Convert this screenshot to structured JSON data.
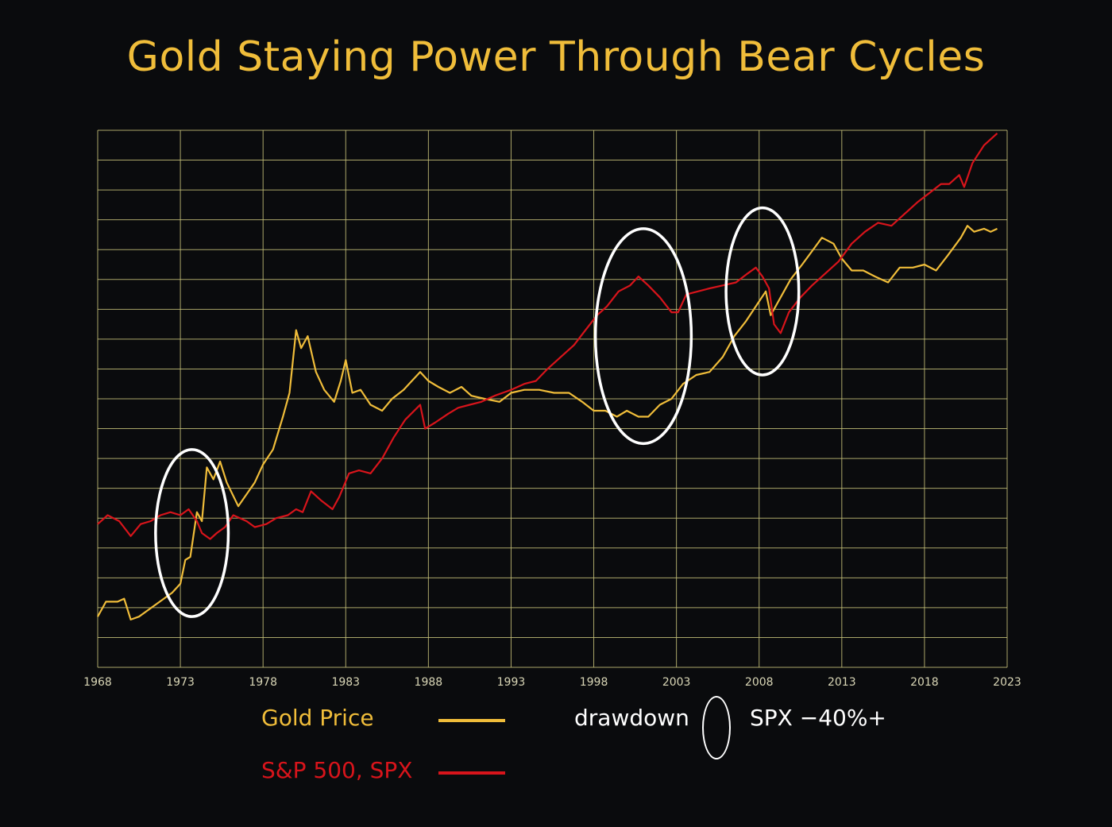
{
  "title": "Gold Staying Power Through Bear Cycles",
  "colors": {
    "background": "#0a0b0d",
    "grid": "#c7c27a",
    "gold": "#f0bd3a",
    "spx": "#d8141b",
    "ellipse": "#ffffff",
    "tick_label": "#d9d6b6"
  },
  "legend": {
    "gold_label": "Gold Price",
    "spx_label": "S&P 500, SPX",
    "drawdown_label": "drawdown",
    "drawdown_desc": "SPX −40%+"
  },
  "chart_data": {
    "type": "line",
    "title": "Gold Staying Power Through Bear Cycles",
    "xlabel": "",
    "ylabel": "",
    "xlim": [
      1968,
      2023
    ],
    "x_ticks": [
      "1968",
      "1973",
      "1978",
      "1983",
      "1988",
      "1993",
      "1998",
      "2003",
      "2008",
      "2013",
      "2018",
      "2023"
    ],
    "y_scale": "log (unlabeled)",
    "ylim": [
      0,
      18
    ],
    "grid": true,
    "legend_position": "bottom",
    "series": [
      {
        "name": "Gold Price",
        "color": "#f0bd3a",
        "points": [
          [
            1968.0,
            1.7
          ],
          [
            1968.5,
            2.2
          ],
          [
            1969.2,
            2.2
          ],
          [
            1969.6,
            2.3
          ],
          [
            1970.0,
            1.6
          ],
          [
            1970.5,
            1.7
          ],
          [
            1971.0,
            1.9
          ],
          [
            1971.5,
            2.1
          ],
          [
            1972.0,
            2.3
          ],
          [
            1972.5,
            2.5
          ],
          [
            1973.0,
            2.8
          ],
          [
            1973.3,
            3.6
          ],
          [
            1973.6,
            3.7
          ],
          [
            1974.0,
            5.2
          ],
          [
            1974.3,
            4.9
          ],
          [
            1974.6,
            6.7
          ],
          [
            1975.0,
            6.3
          ],
          [
            1975.4,
            6.9
          ],
          [
            1975.8,
            6.2
          ],
          [
            1976.5,
            5.4
          ],
          [
            1977.0,
            5.8
          ],
          [
            1977.5,
            6.2
          ],
          [
            1978.0,
            6.8
          ],
          [
            1978.6,
            7.3
          ],
          [
            1979.2,
            8.4
          ],
          [
            1979.6,
            9.2
          ],
          [
            1980.0,
            11.3
          ],
          [
            1980.3,
            10.7
          ],
          [
            1980.7,
            11.1
          ],
          [
            1981.2,
            9.9
          ],
          [
            1981.7,
            9.3
          ],
          [
            1982.3,
            8.9
          ],
          [
            1982.7,
            9.6
          ],
          [
            1983.0,
            10.3
          ],
          [
            1983.4,
            9.2
          ],
          [
            1983.9,
            9.3
          ],
          [
            1984.5,
            8.8
          ],
          [
            1985.2,
            8.6
          ],
          [
            1985.8,
            9.0
          ],
          [
            1986.5,
            9.3
          ],
          [
            1987.0,
            9.6
          ],
          [
            1987.5,
            9.9
          ],
          [
            1988.0,
            9.6
          ],
          [
            1988.6,
            9.4
          ],
          [
            1989.3,
            9.2
          ],
          [
            1990.0,
            9.4
          ],
          [
            1990.6,
            9.1
          ],
          [
            1991.4,
            9.0
          ],
          [
            1992.3,
            8.9
          ],
          [
            1993.0,
            9.2
          ],
          [
            1993.8,
            9.3
          ],
          [
            1994.7,
            9.3
          ],
          [
            1995.6,
            9.2
          ],
          [
            1996.5,
            9.2
          ],
          [
            1997.3,
            8.9
          ],
          [
            1998.0,
            8.6
          ],
          [
            1998.7,
            8.6
          ],
          [
            1999.4,
            8.4
          ],
          [
            2000.0,
            8.6
          ],
          [
            2000.7,
            8.4
          ],
          [
            2001.3,
            8.4
          ],
          [
            2002.0,
            8.8
          ],
          [
            2002.7,
            9.0
          ],
          [
            2003.4,
            9.5
          ],
          [
            2004.2,
            9.8
          ],
          [
            2005.0,
            9.9
          ],
          [
            2005.8,
            10.4
          ],
          [
            2006.5,
            11.1
          ],
          [
            2007.2,
            11.6
          ],
          [
            2007.8,
            12.1
          ],
          [
            2008.4,
            12.6
          ],
          [
            2008.7,
            11.8
          ],
          [
            2009.3,
            12.4
          ],
          [
            2009.9,
            13.0
          ],
          [
            2010.6,
            13.5
          ],
          [
            2011.4,
            14.1
          ],
          [
            2011.8,
            14.4
          ],
          [
            2012.5,
            14.2
          ],
          [
            2013.0,
            13.7
          ],
          [
            2013.6,
            13.3
          ],
          [
            2014.3,
            13.3
          ],
          [
            2015.0,
            13.1
          ],
          [
            2015.8,
            12.9
          ],
          [
            2016.5,
            13.4
          ],
          [
            2017.3,
            13.4
          ],
          [
            2018.0,
            13.5
          ],
          [
            2018.7,
            13.3
          ],
          [
            2019.4,
            13.8
          ],
          [
            2020.2,
            14.4
          ],
          [
            2020.6,
            14.8
          ],
          [
            2021.0,
            14.6
          ],
          [
            2021.6,
            14.7
          ],
          [
            2022.0,
            14.6
          ],
          [
            2022.4,
            14.7
          ]
        ]
      },
      {
        "name": "S&P 500, SPX",
        "color": "#d8141b",
        "points": [
          [
            1968.0,
            4.8
          ],
          [
            1968.6,
            5.1
          ],
          [
            1969.3,
            4.9
          ],
          [
            1970.0,
            4.4
          ],
          [
            1970.6,
            4.8
          ],
          [
            1971.2,
            4.9
          ],
          [
            1971.8,
            5.1
          ],
          [
            1972.4,
            5.2
          ],
          [
            1973.0,
            5.1
          ],
          [
            1973.5,
            5.3
          ],
          [
            1974.0,
            4.9
          ],
          [
            1974.3,
            4.5
          ],
          [
            1974.8,
            4.3
          ],
          [
            1975.2,
            4.5
          ],
          [
            1975.7,
            4.7
          ],
          [
            1976.2,
            5.1
          ],
          [
            1977.0,
            4.9
          ],
          [
            1977.5,
            4.7
          ],
          [
            1978.2,
            4.8
          ],
          [
            1978.8,
            5.0
          ],
          [
            1979.5,
            5.1
          ],
          [
            1980.0,
            5.3
          ],
          [
            1980.4,
            5.2
          ],
          [
            1980.9,
            5.9
          ],
          [
            1981.5,
            5.6
          ],
          [
            1982.2,
            5.3
          ],
          [
            1982.6,
            5.7
          ],
          [
            1983.2,
            6.5
          ],
          [
            1983.8,
            6.6
          ],
          [
            1984.5,
            6.5
          ],
          [
            1985.2,
            7.0
          ],
          [
            1985.9,
            7.7
          ],
          [
            1986.6,
            8.3
          ],
          [
            1987.5,
            8.8
          ],
          [
            1987.8,
            8.0
          ],
          [
            1988.4,
            8.2
          ],
          [
            1989.2,
            8.5
          ],
          [
            1989.8,
            8.7
          ],
          [
            1990.5,
            8.8
          ],
          [
            1991.2,
            8.9
          ],
          [
            1992.0,
            9.1
          ],
          [
            1993.0,
            9.3
          ],
          [
            1993.8,
            9.5
          ],
          [
            1994.5,
            9.6
          ],
          [
            1995.2,
            10.0
          ],
          [
            1996.0,
            10.4
          ],
          [
            1996.8,
            10.8
          ],
          [
            1997.5,
            11.3
          ],
          [
            1998.2,
            11.8
          ],
          [
            1998.8,
            12.1
          ],
          [
            1999.5,
            12.6
          ],
          [
            2000.2,
            12.8
          ],
          [
            2000.7,
            13.1
          ],
          [
            2001.3,
            12.8
          ],
          [
            2002.0,
            12.4
          ],
          [
            2002.7,
            11.9
          ],
          [
            2003.1,
            11.9
          ],
          [
            2003.6,
            12.5
          ],
          [
            2004.3,
            12.6
          ],
          [
            2005.0,
            12.7
          ],
          [
            2005.8,
            12.8
          ],
          [
            2006.6,
            12.9
          ],
          [
            2007.3,
            13.2
          ],
          [
            2007.8,
            13.4
          ],
          [
            2008.2,
            13.1
          ],
          [
            2008.6,
            12.7
          ],
          [
            2008.9,
            11.5
          ],
          [
            2009.3,
            11.2
          ],
          [
            2009.8,
            11.9
          ],
          [
            2010.5,
            12.4
          ],
          [
            2011.2,
            12.8
          ],
          [
            2012.0,
            13.2
          ],
          [
            2012.8,
            13.6
          ],
          [
            2013.6,
            14.2
          ],
          [
            2014.4,
            14.6
          ],
          [
            2015.2,
            14.9
          ],
          [
            2016.0,
            14.8
          ],
          [
            2016.8,
            15.2
          ],
          [
            2017.6,
            15.6
          ],
          [
            2018.3,
            15.9
          ],
          [
            2019.0,
            16.2
          ],
          [
            2019.5,
            16.2
          ],
          [
            2020.1,
            16.5
          ],
          [
            2020.4,
            16.1
          ],
          [
            2020.9,
            16.9
          ],
          [
            2021.6,
            17.5
          ],
          [
            2022.4,
            17.9
          ]
        ]
      }
    ],
    "drawdown_markers": [
      {
        "x_center": 1973.7,
        "x_half_width": 2.2,
        "y_center": 4.5,
        "y_half_height": 2.8
      },
      {
        "x_center": 2001.0,
        "x_half_width": 2.9,
        "y_center": 11.1,
        "y_half_height": 3.6
      },
      {
        "x_center": 2008.2,
        "x_half_width": 2.2,
        "y_center": 12.6,
        "y_half_height": 2.8
      }
    ]
  }
}
